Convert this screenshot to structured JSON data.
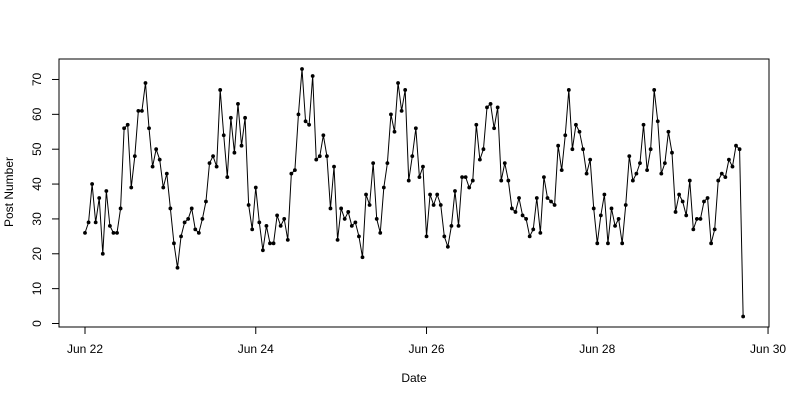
{
  "chart_data": {
    "type": "line",
    "title": "",
    "xlabel": "Date",
    "ylabel": "Post Number",
    "x_ticks": [
      {
        "at": 0,
        "label": "Jun 22"
      },
      {
        "at": 48,
        "label": "Jun 24"
      },
      {
        "at": 96,
        "label": "Jun 26"
      },
      {
        "at": 144,
        "label": "Jun 28"
      },
      {
        "at": 192,
        "label": "Jun 30"
      }
    ],
    "y_ticks": [
      0,
      10,
      20,
      30,
      40,
      50,
      60,
      70
    ],
    "xlim": [
      "Jun 22",
      "Jun 30"
    ],
    "ylim": [
      0,
      70
    ],
    "x_start": "Jun 22",
    "x_step": "1 hour",
    "series": [
      {
        "values": [
          26,
          29,
          40,
          29,
          36,
          20,
          38,
          28,
          26,
          26,
          33,
          56,
          57,
          39,
          48,
          61,
          61,
          69,
          56,
          45,
          50,
          47,
          39,
          43,
          33,
          23,
          16,
          25,
          29,
          30,
          33,
          27,
          26,
          30,
          35,
          46,
          48,
          45,
          67,
          54,
          42,
          59,
          49,
          63,
          51,
          59,
          34,
          27,
          39,
          29,
          21,
          28,
          23,
          23,
          31,
          28,
          30,
          24,
          43,
          44,
          60,
          73,
          58,
          57,
          71,
          47,
          48,
          54,
          48,
          33,
          45,
          24,
          33,
          30,
          32,
          28,
          29,
          25,
          19,
          37,
          34,
          46,
          30,
          26,
          39,
          46,
          60,
          55,
          69,
          61,
          67,
          41,
          48,
          56,
          42,
          45,
          25,
          37,
          34,
          37,
          34,
          25,
          22,
          28,
          38,
          28,
          42,
          42,
          39,
          41,
          57,
          47,
          50,
          62,
          63,
          56,
          62,
          41,
          46,
          41,
          33,
          32,
          36,
          31,
          30,
          25,
          27,
          36,
          26,
          42,
          36,
          35,
          34,
          51,
          44,
          54,
          67,
          50,
          57,
          55,
          50,
          43,
          47,
          33,
          23,
          31,
          37,
          23,
          33,
          28,
          30,
          23,
          34,
          48,
          41,
          43,
          46,
          57,
          44,
          50,
          67,
          58,
          43,
          46,
          55,
          49,
          32,
          37,
          35,
          31,
          41,
          27,
          30,
          30,
          35,
          36,
          23,
          27,
          41,
          43,
          42,
          47,
          45,
          51,
          50,
          2
        ]
      }
    ]
  }
}
